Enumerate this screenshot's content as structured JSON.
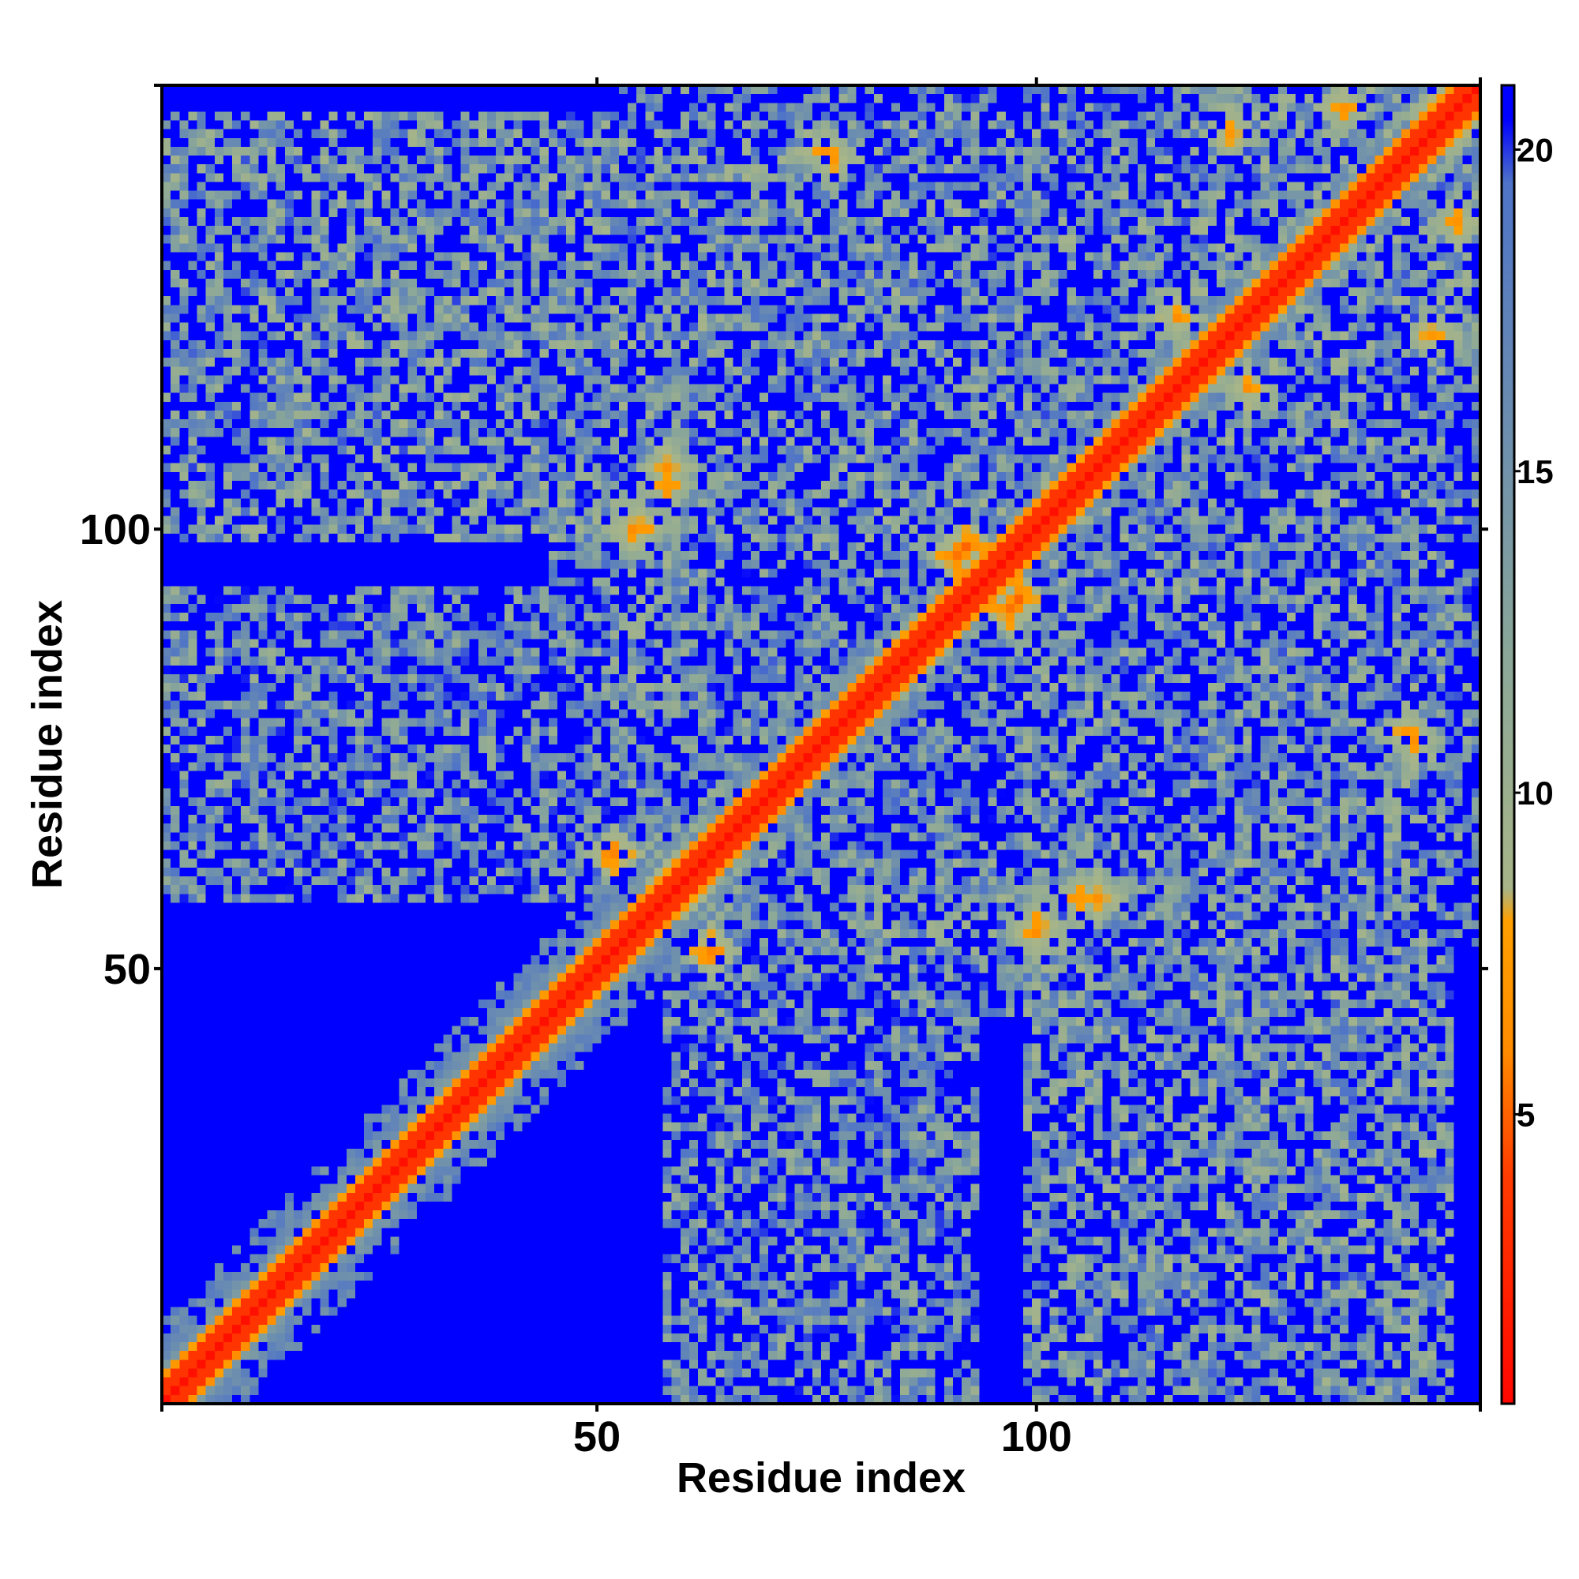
{
  "chart_data": {
    "type": "heatmap",
    "title": "",
    "xlabel": "Residue index",
    "ylabel": "Residue index",
    "n_residues": 150,
    "xlim": [
      1,
      150
    ],
    "ylim": [
      1,
      150
    ],
    "x_ticks": [
      50,
      100
    ],
    "y_ticks": [
      50,
      100
    ],
    "grid": false,
    "value_meaning": "pairwise residue distance (Å), capped at 21",
    "colorbar": {
      "position": "right",
      "range": [
        0.5,
        21
      ],
      "ticks": [
        5,
        10,
        15,
        20
      ],
      "stops": [
        {
          "value": 0,
          "color": "#ff0000"
        },
        {
          "value": 4,
          "color": "#ff3b00"
        },
        {
          "value": 6,
          "color": "#ff8c00"
        },
        {
          "value": 8,
          "color": "#ffa000"
        },
        {
          "value": 8.5,
          "color": "#a8b588"
        },
        {
          "value": 12,
          "color": "#8ca898"
        },
        {
          "value": 16,
          "color": "#6a8cb0"
        },
        {
          "value": 19.5,
          "color": "#4f74c8"
        },
        {
          "value": 20.5,
          "color": "#0000ff"
        }
      ]
    },
    "background_value": 21,
    "contact_blocks": [
      {
        "row_range": [
          78,
          120
        ],
        "col_range": [
          53,
          62
        ],
        "min_value": 6
      },
      {
        "row_range": [
          99,
          147
        ],
        "col_range": [
          98,
          150
        ],
        "min_value": 6
      },
      {
        "row_range": [
          134,
          149
        ],
        "col_range": [
          53,
          93
        ],
        "min_value": 7
      },
      {
        "row_range": [
          97,
          120
        ],
        "col_range": [
          67,
          93
        ],
        "min_value": 7
      },
      {
        "row_range": [
          53,
          95
        ],
        "col_range": [
          58,
          93
        ],
        "min_value": 7
      },
      {
        "row_range": [
          53,
          80
        ],
        "col_range": [
          95,
          125
        ],
        "min_value": 7
      },
      {
        "row_range": [
          53,
          95
        ],
        "col_range": [
          128,
          150
        ],
        "min_value": 8
      },
      {
        "row_range": [
          72,
          100
        ],
        "col_range": [
          45,
          55
        ],
        "min_value": 8
      }
    ],
    "hotspots": [
      {
        "row": 59,
        "col": 60,
        "value": 5
      },
      {
        "row": 63,
        "col": 52,
        "value": 5
      },
      {
        "row": 97,
        "col": 91,
        "value": 5
      },
      {
        "row": 92,
        "col": 98,
        "value": 5
      },
      {
        "row": 100,
        "col": 54,
        "value": 6
      },
      {
        "row": 105,
        "col": 58,
        "value": 6
      },
      {
        "row": 55,
        "col": 100,
        "value": 6
      },
      {
        "row": 58,
        "col": 107,
        "value": 6
      },
      {
        "row": 77,
        "col": 142,
        "value": 6
      },
      {
        "row": 143,
        "col": 76,
        "value": 6
      },
      {
        "row": 124,
        "col": 116,
        "value": 6
      },
      {
        "row": 148,
        "col": 135,
        "value": 6
      },
      {
        "row": 122,
        "col": 145,
        "value": 6
      },
      {
        "row": 148,
        "col": 146,
        "value": 6
      }
    ]
  }
}
